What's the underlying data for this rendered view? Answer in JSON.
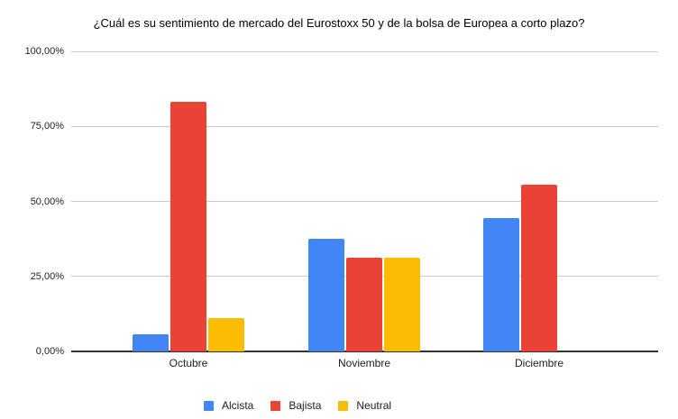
{
  "chart_data": {
    "type": "bar",
    "title": "¿Cuál es su sentimiento de mercado del Eurostoxx 50 y de la bolsa de Europea a corto plazo?",
    "categories": [
      "Octubre",
      "Noviembre",
      "Diciembre"
    ],
    "series": [
      {
        "name": "Alcista",
        "color": "#4285F4",
        "values": [
          5.56,
          37.5,
          44.44
        ]
      },
      {
        "name": "Bajista",
        "color": "#EA4335",
        "values": [
          83.33,
          31.25,
          55.56
        ]
      },
      {
        "name": "Neutral",
        "color": "#FBBC04",
        "values": [
          11.11,
          31.25,
          0
        ]
      }
    ],
    "xlabel": "",
    "ylabel": "",
    "ylim": [
      0,
      100
    ],
    "yticks": [
      {
        "value": 0,
        "label": "0,00%"
      },
      {
        "value": 25,
        "label": "25,00%"
      },
      {
        "value": 50,
        "label": "50,00%"
      },
      {
        "value": 75,
        "label": "75,00%"
      },
      {
        "value": 100,
        "label": "100,00%"
      }
    ],
    "grid": true,
    "legend_position": "bottom"
  },
  "colors": {
    "gridline": "#cccccc",
    "axis": "#333333"
  }
}
